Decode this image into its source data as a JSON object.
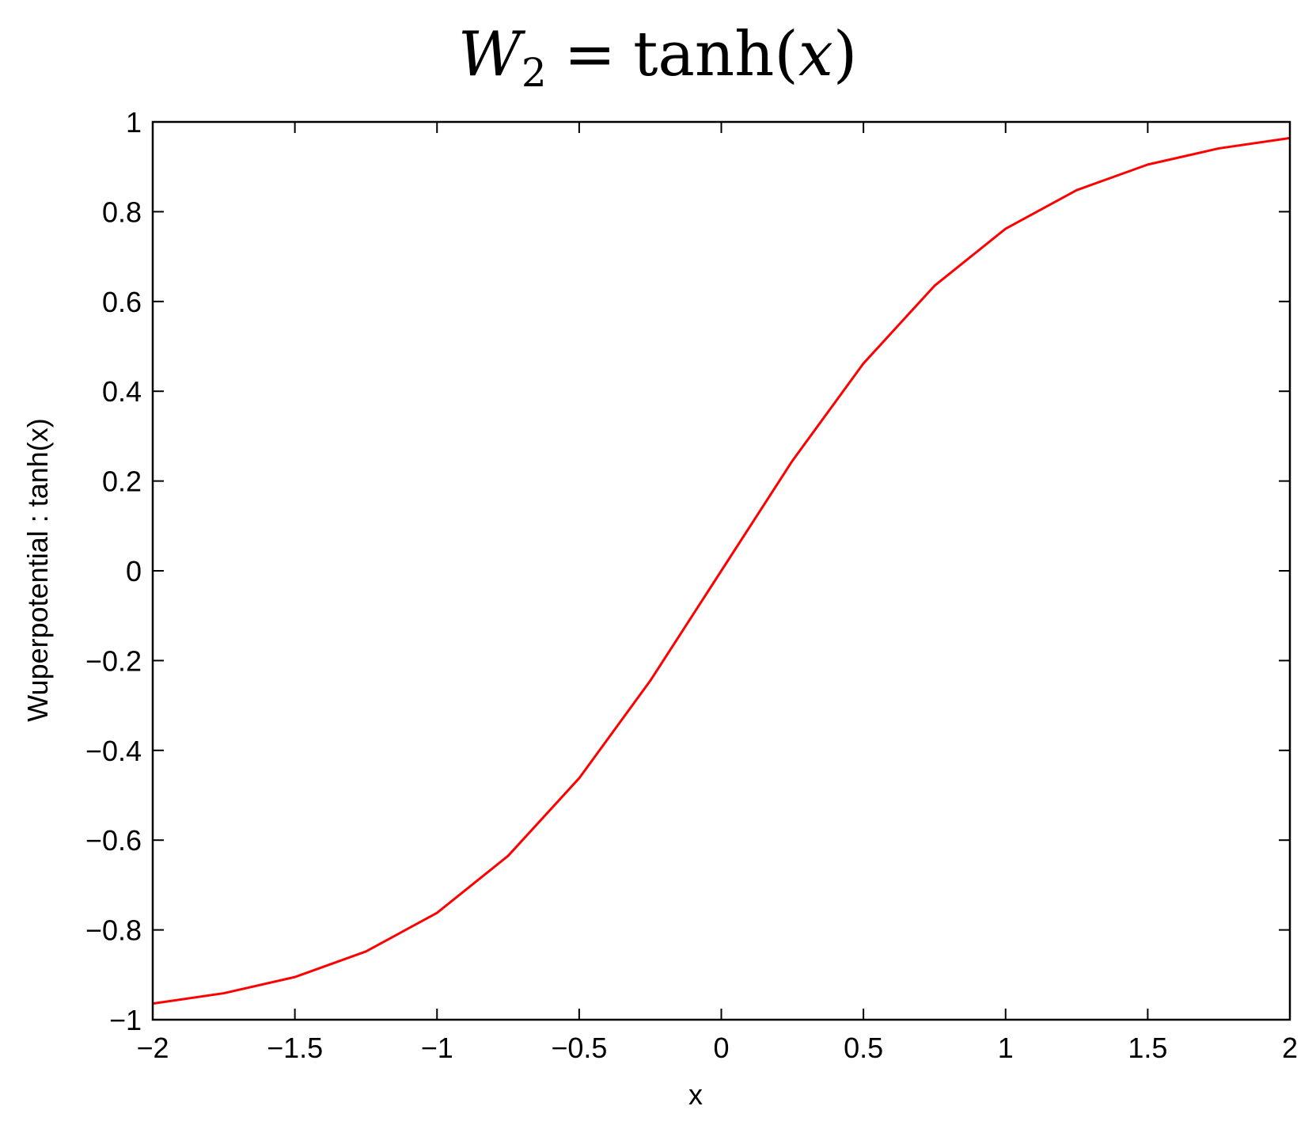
{
  "chart_data": {
    "type": "line",
    "title": {
      "lhs_symbol": "W",
      "lhs_subscript": "2",
      "equals": "=",
      "func": "tanh",
      "open": "(",
      "arg": "x",
      "close": ")"
    },
    "xlabel": "x",
    "ylabel": "Wuperpotential : tanh(x)",
    "xlim": [
      -2,
      2
    ],
    "ylim": [
      -1,
      1
    ],
    "xticks": [
      -2,
      -1.5,
      -1,
      -0.5,
      0,
      0.5,
      1,
      1.5,
      2
    ],
    "xtick_labels": [
      "−2",
      "−1.5",
      "−1",
      "−0.5",
      "0",
      "0.5",
      "1",
      "1.5",
      "2"
    ],
    "yticks": [
      -1,
      -0.8,
      -0.6,
      -0.4,
      -0.2,
      0,
      0.2,
      0.4,
      0.6,
      0.8,
      1
    ],
    "ytick_labels": [
      "−1",
      "−0.8",
      "−0.6",
      "−0.4",
      "−0.2",
      "0",
      "0.2",
      "0.4",
      "0.6",
      "0.8",
      "1"
    ],
    "grid": false,
    "legend": "none",
    "series": [
      {
        "color": "#ff0000",
        "x": [
          -2.0,
          -1.75,
          -1.5,
          -1.25,
          -1.0,
          -0.75,
          -0.5,
          -0.25,
          0.0,
          0.25,
          0.5,
          0.75,
          1.0,
          1.25,
          1.5,
          1.75,
          2.0
        ],
        "y": [
          -0.964,
          -0.941,
          -0.905,
          -0.848,
          -0.762,
          -0.635,
          -0.462,
          -0.245,
          0.0,
          0.245,
          0.462,
          0.635,
          0.762,
          0.848,
          0.905,
          0.941,
          0.964
        ]
      }
    ]
  }
}
